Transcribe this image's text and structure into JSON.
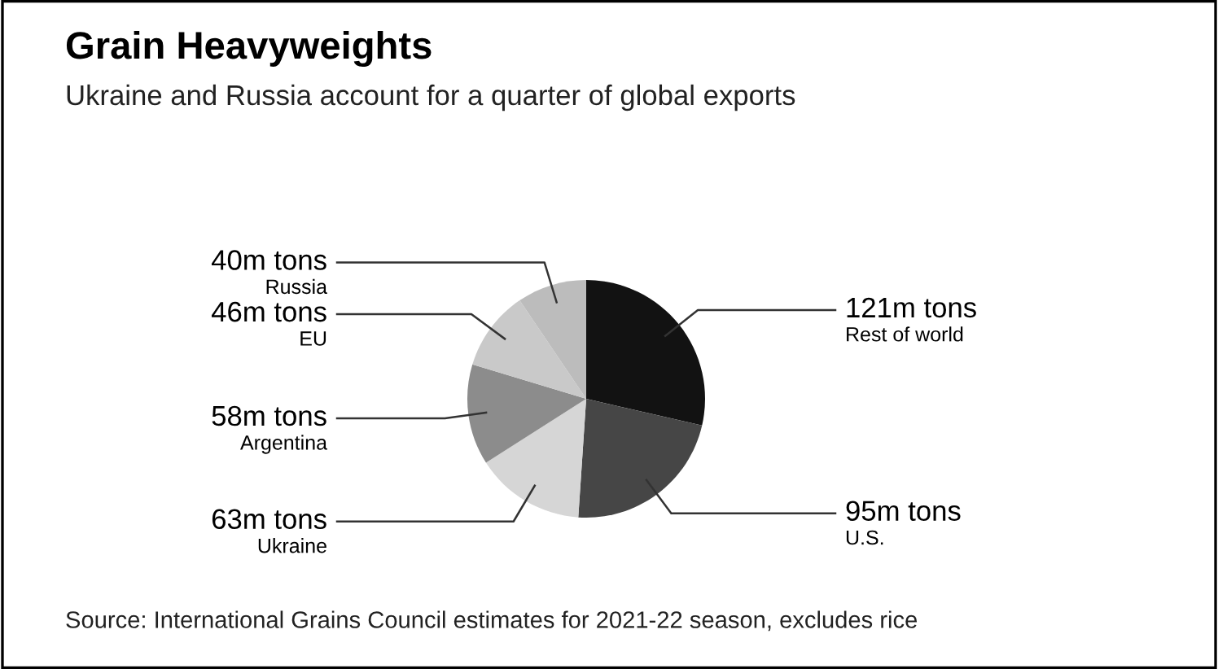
{
  "chart_data": {
    "type": "pie",
    "title": "Grain Heavyweights",
    "subtitle": "Ukraine and Russia account for a quarter of global exports",
    "categories": [
      "Rest of world",
      "U.S.",
      "Ukraine",
      "Argentina",
      "EU",
      "Russia"
    ],
    "values": [
      121,
      95,
      63,
      58,
      46,
      40
    ],
    "value_labels": [
      "121m tons",
      "95m tons",
      "63m tons",
      "58m tons",
      "46m tons",
      "40m tons"
    ],
    "colors": [
      "#121212",
      "#464646",
      "#d6d6d6",
      "#8c8c8c",
      "#c9c9c9",
      "#bcbcbc"
    ],
    "annotations": [
      "Source: International Grains Council estimates for 2021-22 season, excludes rice"
    ]
  }
}
